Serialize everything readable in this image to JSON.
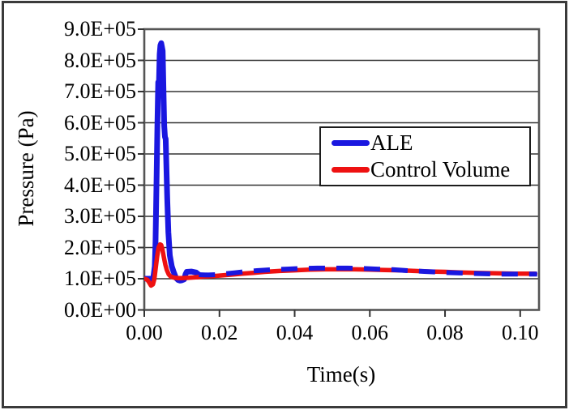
{
  "figure": {
    "background": "#ffffff",
    "border_color": "#3a3a3a"
  },
  "chart_data": {
    "type": "line",
    "title": "",
    "xlabel": "Time(s)",
    "ylabel": "Pressure (Pa)",
    "xlim": [
      0,
      0.105
    ],
    "ylim": [
      0,
      900000
    ],
    "grid": "horizontal",
    "grid_color": "#333333",
    "axis_color": "#555555",
    "x_ticks": [
      0,
      0.02,
      0.04,
      0.06,
      0.08,
      0.1
    ],
    "x_tick_labels": [
      "0.00",
      "0.02",
      "0.04",
      "0.06",
      "0.08",
      "0.10"
    ],
    "y_ticks": [
      900000,
      800000,
      700000,
      600000,
      500000,
      400000,
      300000,
      200000,
      100000,
      0
    ],
    "y_tick_labels": [
      "9.0E+05",
      "8.0E+05",
      "7.0E+05",
      "6.0E+05",
      "5.0E+05",
      "4.0E+05",
      "3.0E+05",
      "2.0E+05",
      "1.0E+05",
      "0.0E+00"
    ],
    "legend": {
      "position": "center-right",
      "entries": [
        {
          "label": "ALE",
          "color": "#1a17e0"
        },
        {
          "label": "Control Volume",
          "color": "#ee1111"
        }
      ]
    },
    "series": [
      {
        "name": "ALE",
        "color": "#1a17e0",
        "width": 7,
        "dash_tail_from": 0.0145,
        "points": [
          [
            0,
            100000
          ],
          [
            0.0012,
            100000
          ],
          [
            0.002,
            100000
          ],
          [
            0.0024,
            103000
          ],
          [
            0.0028,
            140000
          ],
          [
            0.003,
            220000
          ],
          [
            0.0033,
            440000
          ],
          [
            0.0035,
            590000
          ],
          [
            0.0037,
            730000
          ],
          [
            0.0039,
            725000
          ],
          [
            0.0041,
            820000
          ],
          [
            0.0043,
            848000
          ],
          [
            0.0045,
            855000
          ],
          [
            0.0047,
            843000
          ],
          [
            0.0049,
            830000
          ],
          [
            0.0051,
            700000
          ],
          [
            0.0053,
            590000
          ],
          [
            0.0055,
            555000
          ],
          [
            0.0057,
            548000
          ],
          [
            0.0059,
            450000
          ],
          [
            0.0061,
            360000
          ],
          [
            0.0064,
            250000
          ],
          [
            0.0068,
            175000
          ],
          [
            0.0073,
            140000
          ],
          [
            0.0078,
            122000
          ],
          [
            0.0084,
            103000
          ],
          [
            0.009,
            96000
          ],
          [
            0.0095,
            94000
          ],
          [
            0.01,
            95000
          ],
          [
            0.0106,
            98000
          ],
          [
            0.011,
            115000
          ],
          [
            0.0113,
            122000
          ],
          [
            0.0125,
            123000
          ],
          [
            0.0138,
            120000
          ],
          [
            0.0145,
            113000
          ],
          [
            0.017,
            112000
          ],
          [
            0.019,
            113000
          ],
          [
            0.021,
            115000
          ],
          [
            0.024,
            119000
          ],
          [
            0.027,
            123000
          ],
          [
            0.03,
            126000
          ],
          [
            0.034,
            129000
          ],
          [
            0.038,
            131000
          ],
          [
            0.042,
            133000
          ],
          [
            0.046,
            134000
          ],
          [
            0.05,
            134000
          ],
          [
            0.054,
            134000
          ],
          [
            0.058,
            133000
          ],
          [
            0.062,
            131000
          ],
          [
            0.066,
            129000
          ],
          [
            0.07,
            126000
          ],
          [
            0.075,
            123000
          ],
          [
            0.08,
            120000
          ],
          [
            0.085,
            118000
          ],
          [
            0.09,
            116000
          ],
          [
            0.095,
            115000
          ],
          [
            0.1,
            115000
          ],
          [
            0.1045,
            115000
          ]
        ]
      },
      {
        "name": "Control Volume",
        "color": "#ee1111",
        "width": 5.5,
        "points": [
          [
            0,
            100000
          ],
          [
            0.0008,
            97000
          ],
          [
            0.0013,
            88000
          ],
          [
            0.0018,
            78000
          ],
          [
            0.0023,
            82000
          ],
          [
            0.0027,
            100000
          ],
          [
            0.003,
            130000
          ],
          [
            0.0034,
            170000
          ],
          [
            0.0038,
            200000
          ],
          [
            0.0042,
            210000
          ],
          [
            0.0045,
            208000
          ],
          [
            0.0048,
            195000
          ],
          [
            0.0052,
            170000
          ],
          [
            0.0056,
            145000
          ],
          [
            0.006,
            128000
          ],
          [
            0.0065,
            114000
          ],
          [
            0.007,
            107000
          ],
          [
            0.008,
            103000
          ],
          [
            0.009,
            102000
          ],
          [
            0.01,
            102000
          ],
          [
            0.012,
            103000
          ],
          [
            0.014,
            105000
          ],
          [
            0.016,
            107000
          ],
          [
            0.018,
            108000
          ],
          [
            0.02,
            110000
          ],
          [
            0.023,
            113000
          ],
          [
            0.026,
            116000
          ],
          [
            0.029,
            119000
          ],
          [
            0.032,
            122000
          ],
          [
            0.036,
            125000
          ],
          [
            0.04,
            127000
          ],
          [
            0.044,
            129000
          ],
          [
            0.048,
            130000
          ],
          [
            0.052,
            130000
          ],
          [
            0.056,
            130000
          ],
          [
            0.06,
            129000
          ],
          [
            0.064,
            128000
          ],
          [
            0.068,
            127000
          ],
          [
            0.072,
            125000
          ],
          [
            0.076,
            123000
          ],
          [
            0.08,
            122000
          ],
          [
            0.084,
            120000
          ],
          [
            0.088,
            119000
          ],
          [
            0.092,
            118000
          ],
          [
            0.096,
            117000
          ],
          [
            0.1,
            116000
          ],
          [
            0.104,
            116000
          ]
        ]
      }
    ]
  }
}
